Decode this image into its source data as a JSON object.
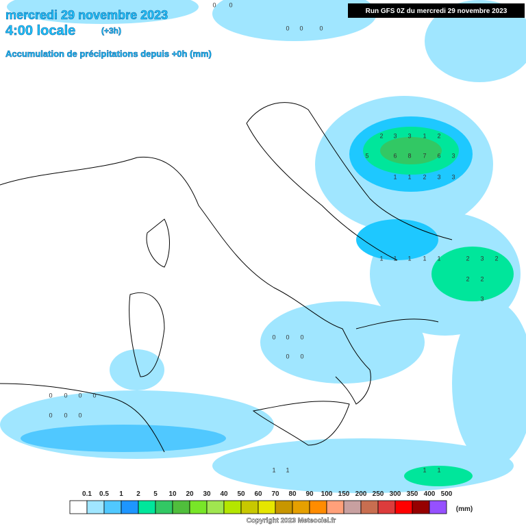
{
  "header": {
    "title": "mercredi 29 novembre 2023",
    "time": "4:00 locale",
    "offset": "(+3h)",
    "subtitle": "Accumulation de précipitations depuis +0h (mm)",
    "run": "Run GFS 0Z du mercredi 29 novembre 2023"
  },
  "map_values": [
    2,
    3,
    3,
    1,
    2,
    5,
    6,
    8,
    7,
    6,
    3,
    1,
    1,
    2,
    3,
    3,
    1,
    1,
    1,
    1,
    1,
    2,
    3,
    2,
    2,
    2,
    3,
    0,
    0,
    0,
    0,
    0,
    0,
    0,
    0,
    0,
    0,
    0,
    0,
    0,
    0,
    0,
    0,
    0,
    1,
    1,
    1,
    1
  ],
  "legend": {
    "labels": [
      "0.1",
      "0.5",
      "1",
      "2",
      "5",
      "10",
      "20",
      "30",
      "40",
      "50",
      "60",
      "70",
      "80",
      "90",
      "100",
      "150",
      "200",
      "250",
      "300",
      "350",
      "400",
      "500"
    ],
    "colors": [
      "#ffffff",
      "#a0e6ff",
      "#50c8ff",
      "#1e96ff",
      "#00e69b",
      "#32c864",
      "#50be3c",
      "#78e628",
      "#a0e650",
      "#b4e600",
      "#c8c800",
      "#e6e600",
      "#c89600",
      "#e6a000",
      "#ff8c00",
      "#ffa07a",
      "#c8a0a0",
      "#c86e50",
      "#dc3c3c",
      "#ff0000",
      "#960000",
      "#9650ff"
    ],
    "unit": "(mm)"
  },
  "copyright": "Copyright 2023 Meteociel.fr"
}
